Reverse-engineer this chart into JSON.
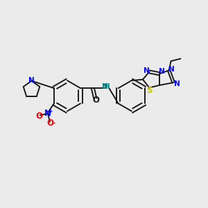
{
  "background_color": "#ebebeb",
  "bond_color": "#1a1a1a",
  "N_color": "#0000ff",
  "O_color": "#ff0000",
  "S_color": "#cccc00",
  "NH_color": "#008080",
  "figsize": [
    3.0,
    3.0
  ],
  "dpi": 100,
  "xlim": [
    0,
    10
  ],
  "ylim": [
    0,
    10
  ]
}
